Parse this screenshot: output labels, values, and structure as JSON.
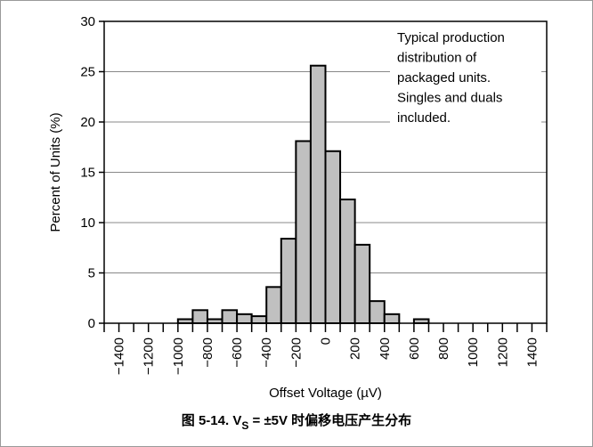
{
  "chart_data": {
    "type": "histogram",
    "xlabel": "Offset Voltage (µV)",
    "ylabel": "Percent of Units (%)",
    "annotation": [
      "Typical production",
      "distribution of",
      "packaged units.",
      "Singles and duals",
      "included."
    ],
    "caption": [
      "图 5-14. V",
      "S",
      " = ±5V 时偏移电压产生分布"
    ],
    "bins": [
      -1000,
      -900,
      -800,
      -700,
      -600,
      -500,
      -400,
      -300,
      -200,
      -100,
      0,
      100,
      200,
      300,
      400,
      500,
      600,
      700
    ],
    "counts": [
      0.4,
      1.3,
      0.4,
      1.3,
      0.9,
      0.7,
      3.6,
      8.4,
      18.1,
      25.6,
      17.1,
      12.3,
      7.8,
      2.2,
      0.9,
      0,
      0.4
    ],
    "color": "#c0c0c0",
    "xlim": [
      -1500,
      1500
    ],
    "xticks": [
      {
        "value": -1400,
        "label": "−1400"
      },
      {
        "value": -1200,
        "label": "−1200"
      },
      {
        "value": -1000,
        "label": "−1000"
      },
      {
        "value": -800,
        "label": "−800"
      },
      {
        "value": -600,
        "label": "−600"
      },
      {
        "value": -400,
        "label": "−400"
      },
      {
        "value": -200,
        "label": "−200"
      },
      0,
      200,
      400,
      600,
      800,
      1000,
      1200,
      1400
    ],
    "xminorticks": [
      -1500,
      -1300,
      -1100,
      -900,
      -700,
      -500,
      -300,
      -100,
      100,
      300,
      500,
      700,
      900,
      1100,
      1300,
      1500
    ],
    "ylim": [
      0,
      30
    ],
    "yticks": [
      0,
      5,
      10,
      15,
      20,
      25,
      30
    ],
    "grid": true
  }
}
